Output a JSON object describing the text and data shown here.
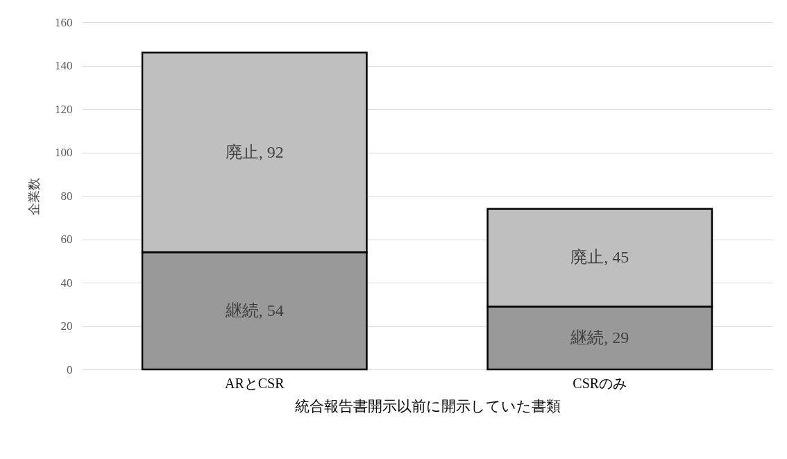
{
  "chart_data": {
    "type": "bar",
    "stacked": true,
    "xlabel": "統合報告書開示以前に開示していた書類",
    "ylabel": "企業数",
    "categories": [
      "ARとCSR",
      "CSRのみ"
    ],
    "series": [
      {
        "color": "#999999",
        "values": [
          54,
          29
        ],
        "value_labels": [
          "継続, 54",
          "継続, 29"
        ]
      },
      {
        "color": "#bfbfbf",
        "values": [
          92,
          45
        ],
        "value_labels": [
          "廃止, 92",
          "廃止, 45"
        ]
      }
    ],
    "ylim": [
      0,
      160
    ],
    "yticks": [
      0,
      20,
      40,
      60,
      80,
      100,
      120,
      140,
      160
    ],
    "grid": "y",
    "legend": false
  }
}
